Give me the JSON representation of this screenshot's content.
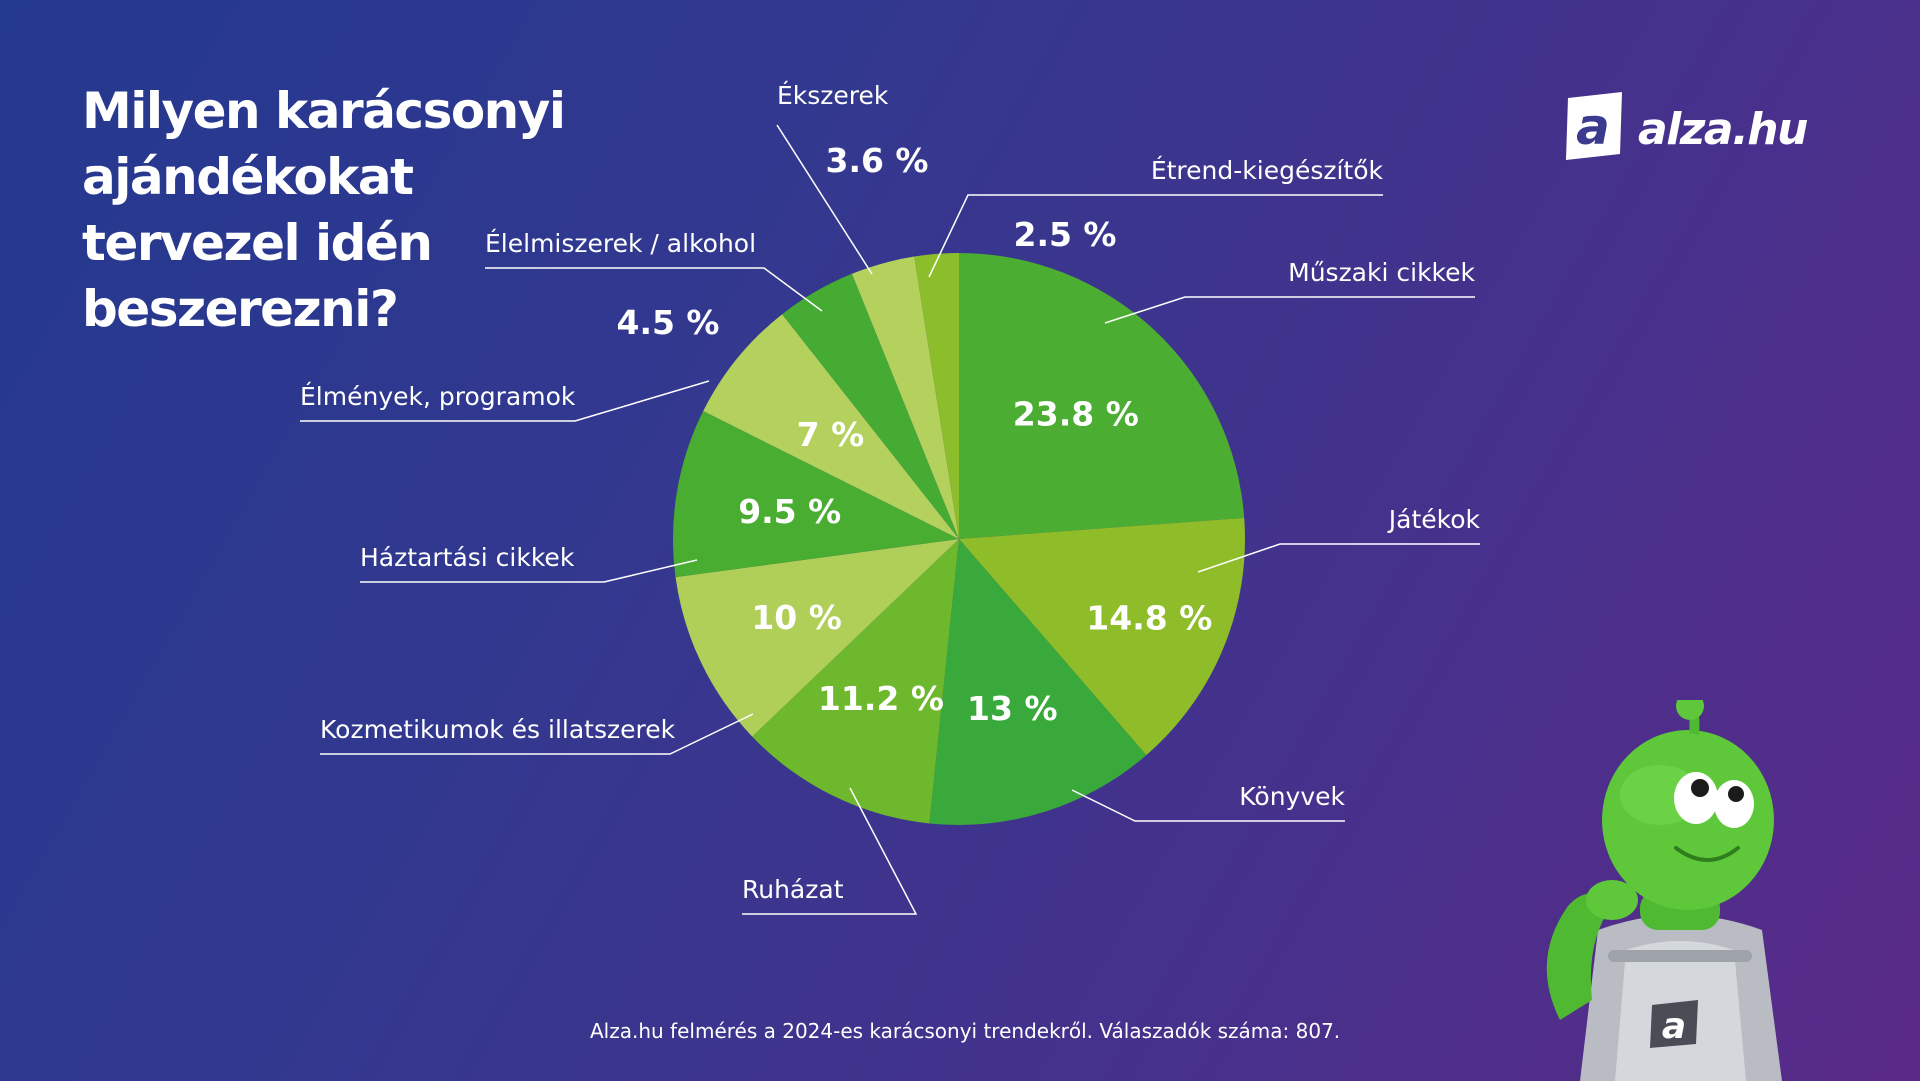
{
  "heading": {
    "lines": [
      "Milyen karácsonyi",
      "ajándékokat",
      "tervezel idén",
      "beszerezni?"
    ]
  },
  "logo": {
    "brand": "alza.hu",
    "mark_letter": "a"
  },
  "footnote": "Alza.hu felmérés a 2024-es karácsonyi trendekről. Válaszadók száma: 807.",
  "colors": {
    "dark_green": "#48ad31",
    "mid_green": "#8cbd2a",
    "light_green": "#b1cd56",
    "mascot_green": "#5ec83a"
  },
  "chart_data": {
    "type": "pie",
    "title": "Milyen karácsonyi ajándékokat tervezel idén beszerezni?",
    "unit": "%",
    "slices": [
      {
        "label": "Műszaki cikkek",
        "value": 23.8,
        "display": "23.8 %",
        "color": "#4bae32"
      },
      {
        "label": "Játékok",
        "value": 14.8,
        "display": "14.8 %",
        "color": "#8ebd29"
      },
      {
        "label": "Könyvek",
        "value": 13,
        "display": "13 %",
        "color": "#3aa93b"
      },
      {
        "label": "Ruházat",
        "value": 11.2,
        "display": "11.2 %",
        "color": "#6db82c"
      },
      {
        "label": "Kozmetikumok és illatszerek",
        "value": 10,
        "display": "10 %",
        "color": "#b0cf59"
      },
      {
        "label": "Háztartási cikkek",
        "value": 9.5,
        "display": "9.5 %",
        "color": "#48ad31"
      },
      {
        "label": "Élmények, programok",
        "value": 7,
        "display": "7 %",
        "color": "#b3d15c"
      },
      {
        "label": "Élelmiszerek / alkohol",
        "value": 4.5,
        "display": "4.5 %",
        "color": "#45ab33"
      },
      {
        "label": "Ékszerek",
        "value": 3.6,
        "display": "3.6 %",
        "color": "#b3d15c"
      },
      {
        "label": "Étrend-kiegészítők",
        "value": 2.5,
        "display": "2.5 %",
        "color": "#8cbe2c"
      }
    ]
  }
}
